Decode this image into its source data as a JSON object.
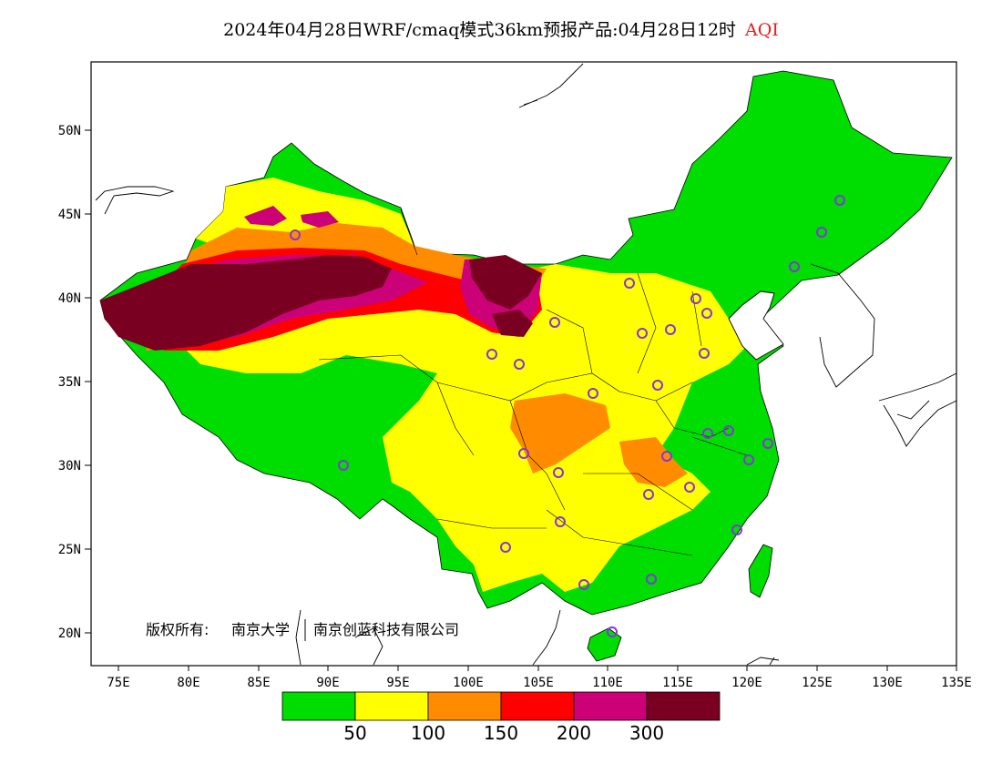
{
  "title": {
    "main": "2024年04月28日WRF/cmaq模式36km预报产品:04月28日12时",
    "variable": "AQI"
  },
  "axes": {
    "lat_labels": [
      "50N",
      "45N",
      "40N",
      "35N",
      "30N",
      "25N",
      "20N"
    ],
    "lon_labels": [
      "75E",
      "80E",
      "85E",
      "90E",
      "95E",
      "100E",
      "105E",
      "110E",
      "115E",
      "120E",
      "125E",
      "130E",
      "135E"
    ]
  },
  "copyright": {
    "prefix": "版权所有:",
    "owner1": "南京大学",
    "owner2": "南京创蓝科技有限公司"
  },
  "legend": {
    "colors": [
      "#00dd00",
      "#ffff00",
      "#ff8c00",
      "#ff0000",
      "#cc0077",
      "#7a0022"
    ],
    "breaks": [
      "50",
      "100",
      "150",
      "200",
      "300"
    ]
  },
  "map": {
    "background": "#ffffff",
    "border_color": "#000000",
    "station_marker_color": "#8833dd"
  }
}
